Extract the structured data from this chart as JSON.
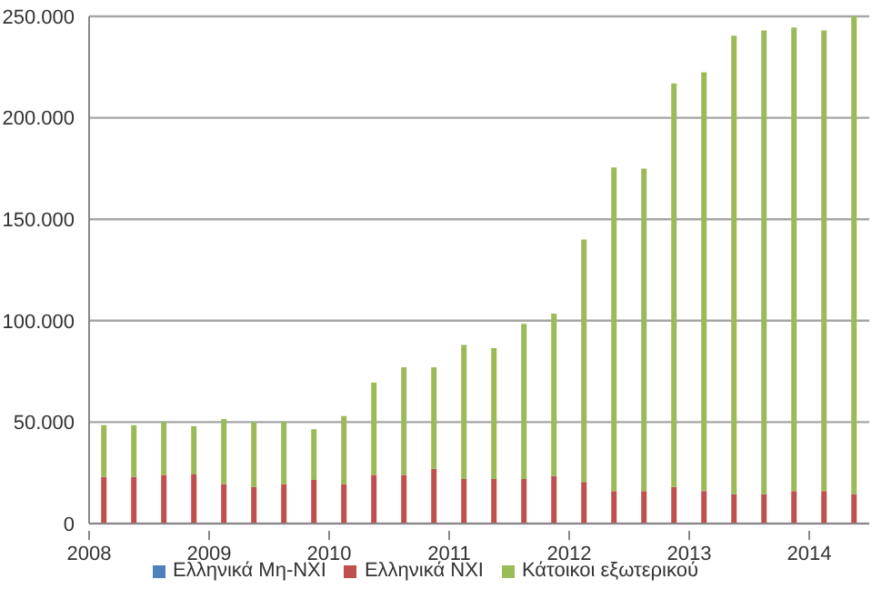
{
  "chart_data": {
    "type": "bar",
    "stacked": true,
    "categories": [
      "2008",
      null,
      null,
      null,
      "2009",
      null,
      null,
      null,
      "2010",
      null,
      null,
      null,
      "2011",
      null,
      null,
      null,
      "2012",
      null,
      null,
      null,
      "2013",
      null,
      null,
      null,
      "2014",
      null
    ],
    "series": [
      {
        "name": "Ελληνικά Μη-ΝΧΙ",
        "color": "#4f81bd",
        "values": [
          0,
          0,
          0,
          0,
          0,
          0,
          0,
          0,
          0,
          0,
          0,
          0,
          0,
          0,
          0,
          0,
          0,
          0,
          0,
          0,
          0,
          0,
          0,
          0,
          0,
          0
        ]
      },
      {
        "name": "Ελληνικά ΝΧΙ",
        "color": "#c0504d",
        "values": [
          23000,
          23000,
          24000,
          24500,
          19500,
          18000,
          19500,
          21500,
          19500,
          24000,
          24000,
          27000,
          22000,
          22000,
          22000,
          23500,
          20500,
          16000,
          16000,
          18000,
          16000,
          14500,
          14500,
          16000,
          16000,
          14500
        ]
      },
      {
        "name": "Κάτοικοι εξωτερικού",
        "color": "#9bbb59",
        "values": [
          25500,
          25500,
          26000,
          23500,
          32000,
          32000,
          30500,
          25000,
          33500,
          45500,
          53000,
          50000,
          66000,
          64500,
          76500,
          80000,
          119500,
          159500,
          159000,
          199000,
          206500,
          226000,
          228500,
          228500,
          227000,
          235500
        ]
      }
    ],
    "ylim": [
      0,
      250000
    ],
    "yticks": [
      0,
      {
        "value": 50000,
        "label": "50.000"
      },
      {
        "value": 100000,
        "label": "100.000"
      },
      {
        "value": 150000,
        "label": "150.000"
      },
      {
        "value": 200000,
        "label": "200.000"
      },
      {
        "value": 250000,
        "label": "250.000"
      }
    ],
    "grid": "y",
    "legend": "bottom"
  }
}
